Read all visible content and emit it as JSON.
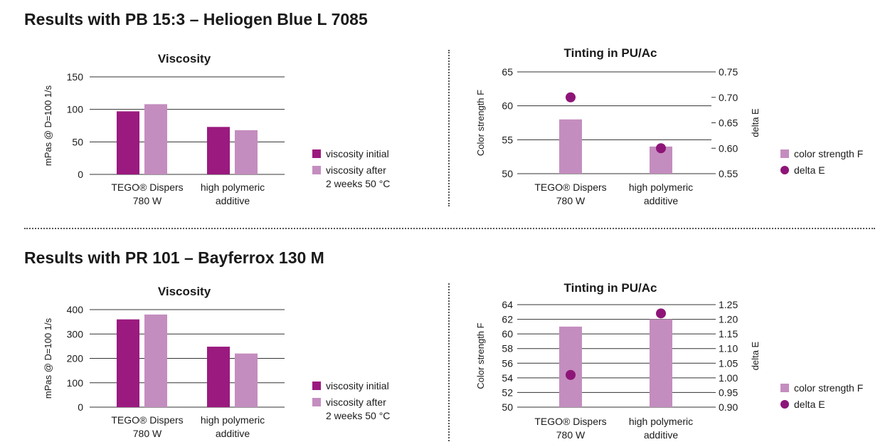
{
  "sections": [
    {
      "title": "Results with PB 15:3 – Heliogen Blue L 7085"
    },
    {
      "title": "Results with PR 101 – Bayferrox 130 M"
    }
  ],
  "colors": {
    "initial": "#9b1a7f",
    "after": "#c48dbf",
    "strength": "#c48dbf",
    "deltaE": "#8e1578",
    "grid": "#333333"
  },
  "chart_data": [
    {
      "type": "bar",
      "title": "Viscosity",
      "ylabel": "mPas @ D=100 1/s",
      "categories": [
        [
          "TEGO® Dispers",
          "780 W"
        ],
        [
          "high polymeric",
          "additive"
        ]
      ],
      "ylim": [
        0,
        150
      ],
      "yticks": [
        0,
        50,
        100,
        150
      ],
      "series": [
        {
          "name": "viscosity initial",
          "values": [
            97,
            73
          ],
          "color": "#9b1a7f"
        },
        {
          "name_lines": [
            "viscosity after",
            "2 weeks 50 °C"
          ],
          "values": [
            108,
            68
          ],
          "color": "#c48dbf"
        }
      ],
      "legend": "right"
    },
    {
      "type": "bar",
      "title": "Tinting in PU/Ac",
      "ylabel": "Color strength F",
      "y2label": "delta E",
      "categories": [
        [
          "TEGO® Dispers",
          "780 W"
        ],
        [
          "high polymeric",
          "additive"
        ]
      ],
      "ylim": [
        50,
        65
      ],
      "yticks": [
        50,
        55,
        60,
        65
      ],
      "y2lim": [
        0.55,
        0.75
      ],
      "y2ticks": [
        "0.55",
        "0.60",
        "0.65",
        "0.70",
        "0.75"
      ],
      "series": [
        {
          "name": "color strength F",
          "values": [
            58,
            54
          ],
          "axis": "left",
          "kind": "bar",
          "color": "#c48dbf"
        },
        {
          "name": "delta E",
          "values": [
            0.7,
            0.6
          ],
          "axis": "right",
          "kind": "dot",
          "color": "#8e1578"
        }
      ],
      "legend": "right"
    },
    {
      "type": "bar",
      "title": "Viscosity",
      "ylabel": "mPas @ D=100 1/s",
      "categories": [
        [
          "TEGO® Dispers",
          "780 W"
        ],
        [
          "high polymeric",
          "additive"
        ]
      ],
      "ylim": [
        0,
        400
      ],
      "yticks": [
        0,
        100,
        200,
        300,
        400
      ],
      "series": [
        {
          "name": "viscosity initial",
          "values": [
            360,
            248
          ],
          "color": "#9b1a7f"
        },
        {
          "name_lines": [
            "viscosity after",
            "2 weeks 50 °C"
          ],
          "values": [
            380,
            220
          ],
          "color": "#c48dbf"
        }
      ],
      "legend": "right"
    },
    {
      "type": "bar",
      "title": "Tinting in PU/Ac",
      "ylabel": "Color strength F",
      "y2label": "delta E",
      "categories": [
        [
          "TEGO® Dispers",
          "780 W"
        ],
        [
          "high polymeric",
          "additive"
        ]
      ],
      "ylim": [
        50,
        64
      ],
      "yticks": [
        50,
        52,
        54,
        56,
        58,
        60,
        62,
        64
      ],
      "y2lim": [
        0.9,
        1.25
      ],
      "y2ticks": [
        "0.90",
        "0.95",
        "1.00",
        "1.05",
        "1.10",
        "1.15",
        "1.20",
        "1.25"
      ],
      "series": [
        {
          "name": "color strength F",
          "values": [
            61,
            62
          ],
          "axis": "left",
          "kind": "bar",
          "color": "#c48dbf"
        },
        {
          "name": "delta E",
          "values": [
            1.01,
            1.22
          ],
          "axis": "right",
          "kind": "dot",
          "color": "#8e1578"
        }
      ],
      "legend": "right"
    }
  ]
}
